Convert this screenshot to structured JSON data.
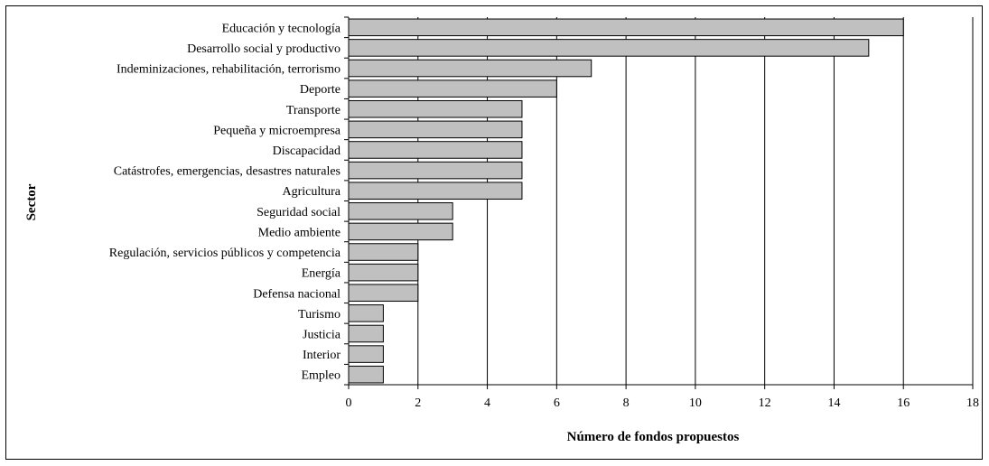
{
  "chart_data": {
    "type": "bar",
    "orientation": "horizontal",
    "title": "",
    "xlabel": "Número de fondos propuestos",
    "ylabel": "Sector",
    "xlim": [
      0,
      18
    ],
    "xticks": [
      0,
      2,
      4,
      6,
      8,
      10,
      12,
      14,
      16,
      18
    ],
    "grid": "vertical",
    "legend": "none",
    "bar_color": "#c0c0c0",
    "categories": [
      "Educación y tecnología",
      "Desarrollo social y productivo",
      "Indeminizaciones, rehabilitación, terrorismo",
      "Deporte",
      "Transporte",
      "Pequeña y microempresa",
      "Discapacidad",
      "Catástrofes, emergencias, desastres naturales",
      "Agricultura",
      "Seguridad social",
      "Medio ambiente",
      "Regulación, servicios públicos y competencia",
      "Energía",
      "Defensa nacional",
      "Turismo",
      "Justicia",
      "Interior",
      "Empleo"
    ],
    "values": [
      16,
      15,
      7,
      6,
      5,
      5,
      5,
      5,
      5,
      3,
      3,
      2,
      2,
      2,
      1,
      1,
      1,
      1
    ]
  }
}
